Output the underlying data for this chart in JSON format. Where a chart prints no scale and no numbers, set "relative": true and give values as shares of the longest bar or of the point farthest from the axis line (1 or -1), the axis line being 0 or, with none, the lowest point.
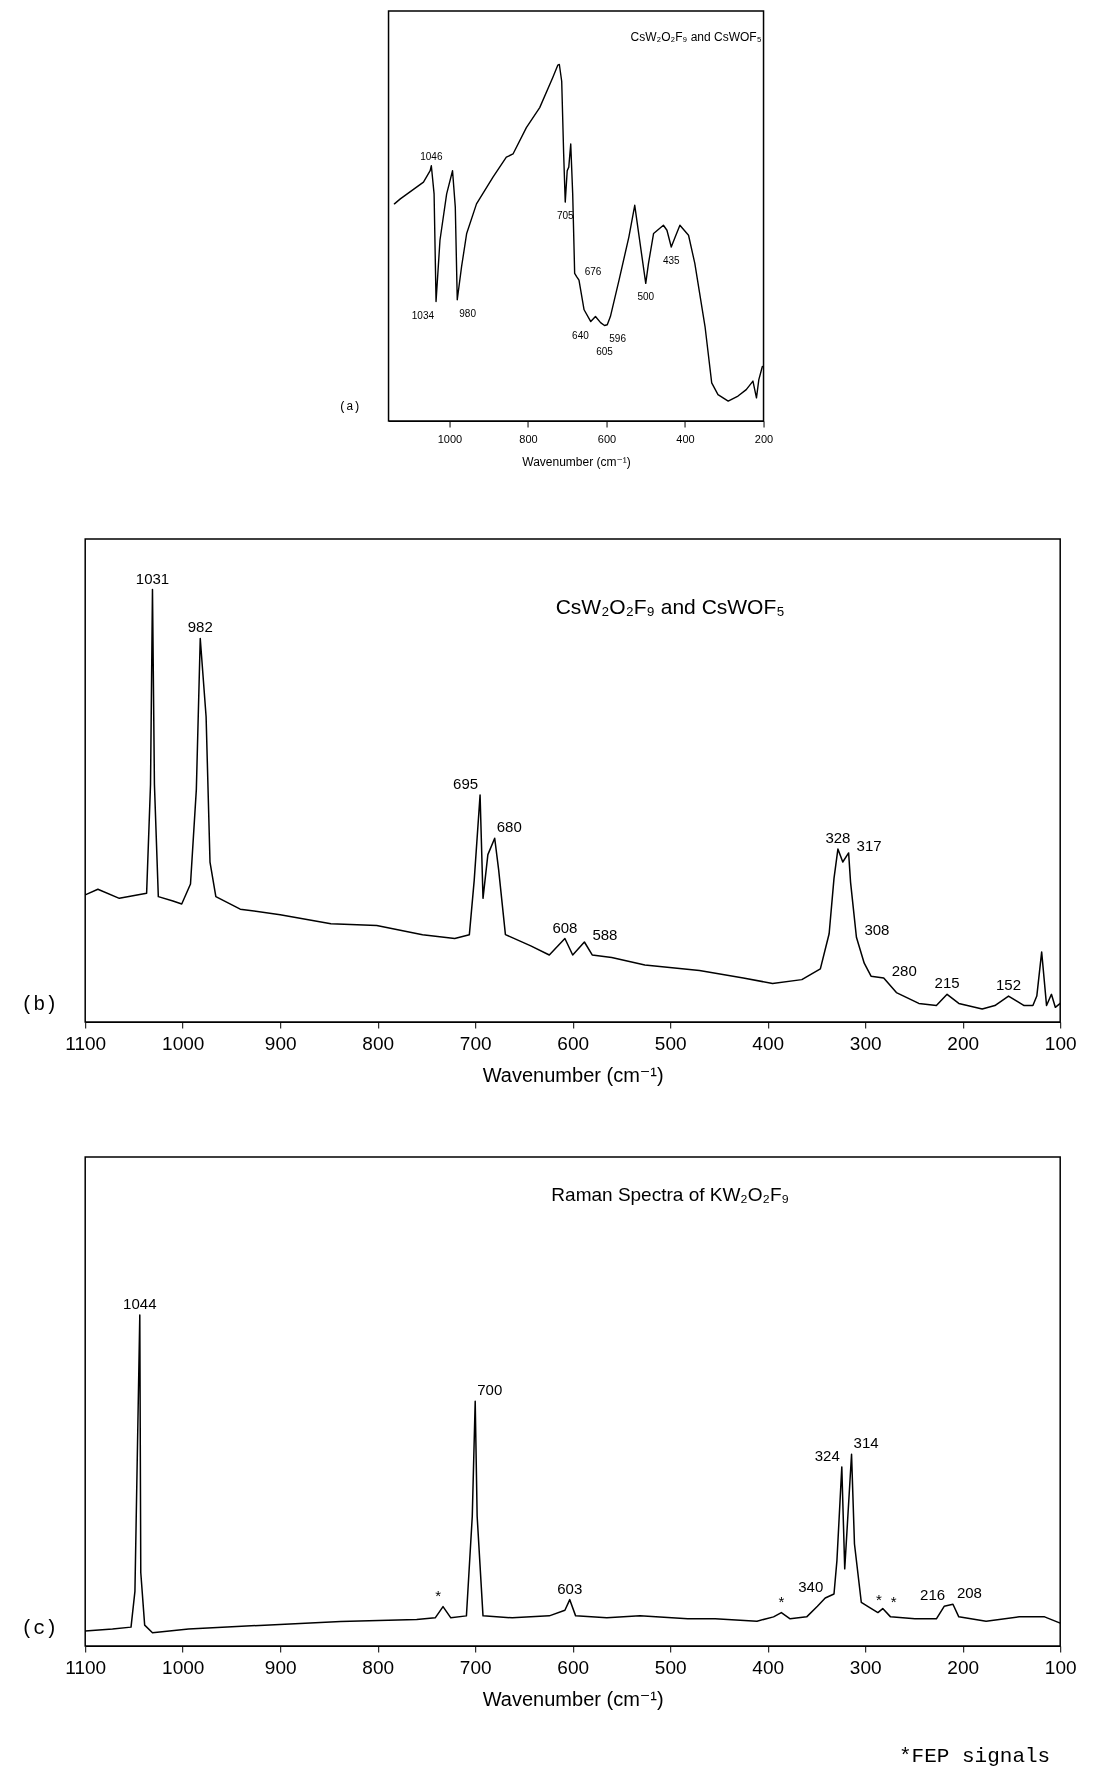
{
  "chart_data": [
    {
      "type": "line",
      "title": "CsW₂O₂F₉ and CsWOF₅",
      "xlabel": "Wavenumber (cm⁻¹)",
      "relative": true,
      "xlim": [
        1155,
        200
      ],
      "xticks": [
        1000,
        800,
        600,
        400,
        200
      ],
      "x": [
        1140,
        1125,
        1066,
        1049,
        1046,
        1039,
        1034,
        1024,
        1007,
        992,
        985,
        980,
        969,
        956,
        931,
        889,
        855,
        838,
        804,
        770,
        737,
        724,
        720,
        714,
        709,
        705,
        700,
        696,
        691,
        686,
        681,
        676,
        670,
        657,
        640,
        628,
        615,
        605,
        598,
        590,
        568,
        543,
        528,
        518,
        500,
        493,
        480,
        455,
        446,
        435,
        425,
        413,
        391,
        375,
        349,
        332,
        316,
        290,
        265,
        244,
        227,
        218,
        212,
        203
      ],
      "series": [
        {
          "color": "#000000",
          "values": [
            0.609,
            0.623,
            0.67,
            0.702,
            0.716,
            0.637,
            0.335,
            0.507,
            0.637,
            0.702,
            0.6,
            0.34,
            0.433,
            0.526,
            0.609,
            0.684,
            0.74,
            0.749,
            0.823,
            0.879,
            0.963,
            0.998,
            1.0,
            0.953,
            0.749,
            0.614,
            0.702,
            0.712,
            0.777,
            0.637,
            0.414,
            0.405,
            0.395,
            0.312,
            0.279,
            0.293,
            0.276,
            0.268,
            0.27,
            0.293,
            0.395,
            0.516,
            0.605,
            0.526,
            0.386,
            0.442,
            0.526,
            0.549,
            0.535,
            0.488,
            0.516,
            0.549,
            0.521,
            0.442,
            0.265,
            0.107,
            0.074,
            0.056,
            0.07,
            0.088,
            0.112,
            0.065,
            0.116,
            0.153
          ]
        }
      ],
      "annotations": [
        "(a)",
        {
          "text": "1046",
          "x": 1046,
          "y": 0.716
        },
        {
          "text": "1034",
          "x": 1034,
          "y": 0.335
        },
        {
          "text": "980",
          "x": 980,
          "y": 0.34
        },
        {
          "text": "705",
          "x": 705,
          "y": 0.614
        },
        {
          "text": "676",
          "x": 676,
          "y": 0.405
        },
        {
          "text": "640",
          "x": 640,
          "y": 0.279
        },
        {
          "text": "605",
          "x": 605,
          "y": 0.268
        },
        {
          "text": "596",
          "x": 598,
          "y": 0.27
        },
        {
          "text": "500",
          "x": 500,
          "y": 0.386
        },
        {
          "text": "435",
          "x": 435,
          "y": 0.488
        }
      ]
    },
    {
      "type": "line",
      "title": "CsW₂O₂F₉ and CsWOF₅",
      "xlabel": "Wavenumber (cm⁻¹)",
      "relative": true,
      "xlim": [
        1100,
        100
      ],
      "xticks": [
        1100,
        1000,
        900,
        800,
        700,
        600,
        500,
        400,
        300,
        200,
        100
      ],
      "x": [
        1100,
        1087,
        1065,
        1037,
        1033,
        1031,
        1029,
        1025,
        1010,
        1001,
        992,
        986,
        982,
        976,
        972,
        966,
        941,
        900,
        848,
        801,
        754,
        721,
        706,
        701,
        695,
        692,
        687,
        680,
        676,
        669,
        643,
        624,
        608,
        600,
        588,
        580,
        560,
        526,
        470,
        425,
        395,
        365,
        346,
        337,
        332,
        328,
        323,
        317,
        315,
        309,
        301,
        294,
        281,
        268,
        245,
        227,
        216,
        204,
        180,
        167,
        153,
        137,
        128,
        124,
        119,
        114,
        109,
        105,
        100
      ],
      "series": [
        {
          "color": "#000000",
          "values": [
            0.294,
            0.307,
            0.286,
            0.298,
            0.55,
            1.0,
            0.55,
            0.29,
            0.28,
            0.273,
            0.319,
            0.538,
            0.887,
            0.706,
            0.37,
            0.29,
            0.261,
            0.248,
            0.227,
            0.223,
            0.202,
            0.193,
            0.202,
            0.328,
            0.525,
            0.286,
            0.387,
            0.425,
            0.353,
            0.202,
            0.176,
            0.155,
            0.193,
            0.155,
            0.185,
            0.155,
            0.149,
            0.132,
            0.119,
            0.102,
            0.089,
            0.098,
            0.123,
            0.204,
            0.332,
            0.4,
            0.37,
            0.391,
            0.323,
            0.196,
            0.136,
            0.106,
            0.102,
            0.068,
            0.043,
            0.038,
            0.064,
            0.043,
            0.03,
            0.038,
            0.06,
            0.038,
            0.038,
            0.06,
            0.162,
            0.038,
            0.064,
            0.034,
            0.043
          ]
        }
      ],
      "annotations": [
        "(b)",
        {
          "text": "1031",
          "x": 1031,
          "y": 1.0
        },
        {
          "text": "982",
          "x": 982,
          "y": 0.887
        },
        {
          "text": "695",
          "x": 695,
          "y": 0.525
        },
        {
          "text": "680",
          "x": 680,
          "y": 0.425
        },
        {
          "text": "608",
          "x": 608,
          "y": 0.193
        },
        {
          "text": "588",
          "x": 588,
          "y": 0.185
        },
        {
          "text": "328",
          "x": 328,
          "y": 0.4
        },
        {
          "text": "317",
          "x": 317,
          "y": 0.391
        },
        {
          "text": "308",
          "x": 309,
          "y": 0.196
        },
        {
          "text": "280",
          "x": 281,
          "y": 0.102
        },
        {
          "text": "215",
          "x": 216,
          "y": 0.064
        },
        {
          "text": "152",
          "x": 153,
          "y": 0.06
        }
      ]
    },
    {
      "type": "line",
      "title": "Raman Spectra of KW₂O₂F₉",
      "xlabel": "Wavenumber (cm⁻¹)",
      "relative": true,
      "xlim": [
        1100,
        100
      ],
      "xticks": [
        1100,
        1000,
        900,
        800,
        700,
        600,
        500,
        400,
        300,
        200,
        100
      ],
      "x": [
        1100,
        1072,
        1053,
        1049,
        1044,
        1043,
        1039,
        1031,
        994,
        916,
        838,
        760,
        741,
        733,
        725,
        709,
        703,
        700,
        698,
        692,
        662,
        624,
        608,
        603,
        597,
        565,
        531,
        482,
        454,
        411,
        394,
        386,
        377,
        360,
        349,
        341,
        332,
        329,
        324,
        321,
        314,
        311,
        304,
        297,
        287,
        282,
        274,
        249,
        227,
        219,
        210,
        204,
        176,
        142,
        116,
        100
      ],
      "series": [
        {
          "color": "#000000",
          "values": [
            0.045,
            0.051,
            0.057,
            0.165,
            1.0,
            0.222,
            0.063,
            0.04,
            0.051,
            0.063,
            0.074,
            0.08,
            0.085,
            0.119,
            0.085,
            0.091,
            0.392,
            0.739,
            0.392,
            0.091,
            0.085,
            0.091,
            0.108,
            0.14,
            0.091,
            0.085,
            0.091,
            0.082,
            0.082,
            0.075,
            0.088,
            0.101,
            0.082,
            0.088,
            0.12,
            0.145,
            0.157,
            0.258,
            0.541,
            0.233,
            0.579,
            0.308,
            0.132,
            0.119,
            0.101,
            0.113,
            0.088,
            0.082,
            0.082,
            0.12,
            0.126,
            0.088,
            0.075,
            0.088,
            0.088,
            0.069
          ]
        }
      ],
      "annotations": [
        "(c)",
        "*FEP signals",
        {
          "text": "1044",
          "x": 1044,
          "y": 1.0
        },
        {
          "text": "*",
          "x": 733,
          "y": 0.119
        },
        {
          "text": "700",
          "x": 700,
          "y": 0.739
        },
        {
          "text": "603",
          "x": 603,
          "y": 0.14
        },
        {
          "text": "*",
          "x": 386,
          "y": 0.101
        },
        {
          "text": "340",
          "x": 341,
          "y": 0.145
        },
        {
          "text": "324",
          "x": 324,
          "y": 0.541
        },
        {
          "text": "314",
          "x": 314,
          "y": 0.579
        },
        {
          "text": "*",
          "x": 297,
          "y": 0.119
        },
        {
          "text": "*",
          "x": 282,
          "y": 0.113
        },
        {
          "text": "216",
          "x": 216,
          "y": 0.12
        },
        {
          "text": "208",
          "x": 208,
          "y": 0.126
        }
      ]
    }
  ]
}
